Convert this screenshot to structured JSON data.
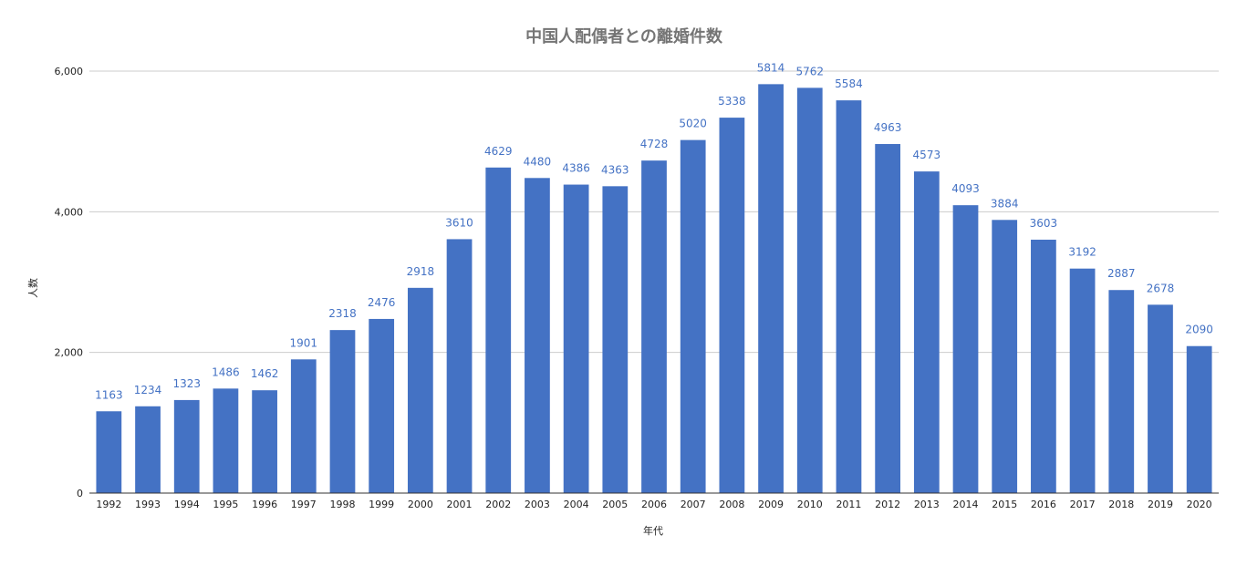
{
  "chart_data": {
    "type": "bar",
    "title": "中国人配偶者との離婚件数",
    "xlabel": "年代",
    "ylabel": "人数",
    "ylim": [
      0,
      6000
    ],
    "yticks": [
      "0",
      "2,000",
      "4,000",
      "6,000"
    ],
    "ytick_values": [
      0,
      2000,
      4000,
      6000
    ],
    "grid": true,
    "bar_color": "#4472c4",
    "gridline_color": "#cccccc",
    "categories": [
      "1992",
      "1993",
      "1994",
      "1995",
      "1996",
      "1997",
      "1998",
      "1999",
      "2000",
      "2001",
      "2002",
      "2003",
      "2004",
      "2005",
      "2006",
      "2007",
      "2008",
      "2009",
      "2010",
      "2011",
      "2012",
      "2013",
      "2014",
      "2015",
      "2016",
      "2017",
      "2018",
      "2019",
      "2020"
    ],
    "values": [
      1163,
      1234,
      1323,
      1486,
      1462,
      1901,
      2318,
      2476,
      2918,
      3610,
      4629,
      4480,
      4386,
      4363,
      4728,
      5020,
      5338,
      5814,
      5762,
      5584,
      4963,
      4573,
      4093,
      3884,
      3603,
      3192,
      2887,
      2678,
      2090
    ]
  }
}
